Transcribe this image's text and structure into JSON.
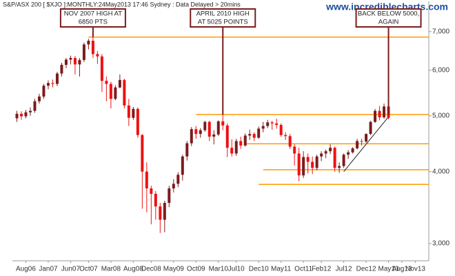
{
  "chart_data": {
    "type": "candlestick",
    "title": "S&P/ASX 200 [ $XJO ]:MONTHLY:24May2013 17:46 Sydney : Data Delayed > 20mins",
    "watermark": "www.incrediblecharts.com",
    "x": [
      "Jun06",
      "Jul06",
      "Aug06",
      "Sep06",
      "Oct06",
      "Nov06",
      "Dec06",
      "Jan07",
      "Feb07",
      "Mar07",
      "Apr07",
      "May07",
      "Jun07",
      "Jul07",
      "Aug07",
      "Sep07",
      "Oct07",
      "Nov07",
      "Dec07",
      "Jan08",
      "Feb08",
      "Mar08",
      "Apr08",
      "May08",
      "Jun08",
      "Jul08",
      "Aug08",
      "Sep08",
      "Oct08",
      "Nov08",
      "Dec08",
      "Jan09",
      "Feb09",
      "Mar09",
      "Apr09",
      "May09",
      "Jun09",
      "Jul09",
      "Aug09",
      "Sep09",
      "Oct09",
      "Nov09",
      "Dec09",
      "Jan10",
      "Feb10",
      "Mar10",
      "Apr10",
      "May10",
      "Jun10",
      "Jul10",
      "Aug10",
      "Sep10",
      "Oct10",
      "Nov10",
      "Dec10",
      "Jan11",
      "Feb11",
      "Mar11",
      "Apr11",
      "May11",
      "Jun11",
      "Jul11",
      "Aug11",
      "Sep11",
      "Oct11",
      "Nov11",
      "Dec11",
      "Jan12",
      "Feb12",
      "Mar12",
      "Apr12",
      "May12",
      "Jun12",
      "Jul12",
      "Aug12",
      "Sep12",
      "Oct12",
      "Nov12",
      "Dec12",
      "Jan13",
      "Feb13",
      "Mar13",
      "Apr13",
      "May13"
    ],
    "open": [
      4950,
      5040,
      4990,
      5070,
      5100,
      5300,
      5400,
      5640,
      5700,
      5680,
      5920,
      6130,
      6260,
      6300,
      6140,
      6250,
      6650,
      6750,
      6400,
      6340,
      5750,
      5680,
      5350,
      5600,
      5770,
      5210,
      4960,
      5140,
      4630,
      4000,
      3740,
      3660,
      3480,
      3300,
      3530,
      3740,
      3810,
      3950,
      4250,
      4480,
      4740,
      4650,
      4720,
      4880,
      4600,
      4640,
      4890,
      4810,
      4400,
      4300,
      4520,
      4440,
      4620,
      4650,
      4580,
      4750,
      4800,
      4870,
      4850,
      4820,
      4630,
      4610,
      4420,
      4300,
      3940,
      4240,
      4160,
      4060,
      4250,
      4300,
      4340,
      4400,
      4060,
      4090,
      4280,
      4320,
      4390,
      4520,
      4510,
      4650,
      4880,
      5100,
      4970,
      5190
    ],
    "high": [
      5100,
      5090,
      5120,
      5170,
      5350,
      5460,
      5680,
      5760,
      5780,
      5960,
      6180,
      6300,
      6360,
      6350,
      6300,
      6700,
      6800,
      6850,
      6480,
      6400,
      5850,
      5730,
      5650,
      5900,
      5800,
      5350,
      5180,
      5170,
      4650,
      4150,
      3780,
      3700,
      3530,
      3560,
      3780,
      3880,
      3990,
      4280,
      4520,
      4780,
      4800,
      4760,
      4900,
      4900,
      4720,
      4910,
      5025,
      4850,
      4550,
      4560,
      4600,
      4660,
      4730,
      4680,
      4790,
      4880,
      4920,
      4900,
      4940,
      4850,
      4680,
      4650,
      4460,
      4400,
      4340,
      4300,
      4250,
      4280,
      4340,
      4370,
      4460,
      4420,
      4150,
      4300,
      4360,
      4410,
      4560,
      4560,
      4660,
      4900,
      5140,
      5200,
      5250,
      5220
    ],
    "low": [
      4880,
      4920,
      4950,
      5000,
      5060,
      5250,
      5350,
      5560,
      5600,
      5630,
      5850,
      6050,
      6140,
      5900,
      5850,
      6200,
      6520,
      6300,
      6150,
      5500,
      5300,
      5150,
      5320,
      5580,
      5150,
      4800,
      4920,
      4580,
      3450,
      3400,
      3240,
      3300,
      3130,
      3140,
      3470,
      3680,
      3760,
      3860,
      4180,
      4430,
      4560,
      4580,
      4690,
      4520,
      4460,
      4610,
      4720,
      4240,
      4250,
      4260,
      4380,
      4420,
      4540,
      4520,
      4560,
      4680,
      4760,
      4730,
      4750,
      4600,
      4540,
      4380,
      4100,
      3850,
      3900,
      3970,
      3960,
      4020,
      4170,
      4220,
      4290,
      4000,
      3980,
      4060,
      4210,
      4300,
      4370,
      4440,
      4490,
      4630,
      4860,
      4910,
      4940,
      4930
    ],
    "close": [
      5040,
      4990,
      5070,
      5100,
      5300,
      5400,
      5640,
      5700,
      5680,
      5920,
      6130,
      6260,
      6300,
      6140,
      6250,
      6650,
      6750,
      6400,
      6340,
      5750,
      5680,
      5350,
      5600,
      5770,
      5210,
      4960,
      5140,
      4630,
      4000,
      3740,
      3660,
      3480,
      3300,
      3530,
      3740,
      3810,
      3950,
      4250,
      4480,
      4740,
      4650,
      4720,
      4880,
      4600,
      4640,
      4890,
      4810,
      4400,
      4300,
      4520,
      4440,
      4620,
      4650,
      4580,
      4750,
      4800,
      4870,
      4850,
      4820,
      4630,
      4610,
      4420,
      4300,
      3940,
      4240,
      4160,
      4060,
      4250,
      4300,
      4340,
      4400,
      4060,
      4090,
      4280,
      4320,
      4390,
      4520,
      4510,
      4650,
      4880,
      5100,
      4970,
      5190,
      4960
    ],
    "up_color": "#7a1c1c",
    "down_color": "#ee1111",
    "xlim": [
      "May06",
      "Feb14"
    ],
    "xticks": [
      "Aug06",
      "Jan07",
      "Jun07",
      "Oct07",
      "Mar08",
      "Aug08",
      "Dec08",
      "May09",
      "Oct09",
      "Mar10",
      "Jul10",
      "Dec10",
      "May11",
      "Oct11",
      "Feb12",
      "Jul12",
      "Dec12",
      "May13",
      "Aug13",
      "Nov13"
    ],
    "ylim": [
      2800,
      7900
    ],
    "yticks": [
      {
        "value": 3000,
        "label": "3,000"
      },
      {
        "value": 4000,
        "label": "4,000"
      },
      {
        "value": 5000,
        "label": "5,000"
      },
      {
        "value": 6000,
        "label": "6,000"
      },
      {
        "value": 7000,
        "label": "7,000"
      }
    ],
    "log_scale": true,
    "levels": [
      {
        "value": 6850,
        "from": "Oct07"
      },
      {
        "value": 5025,
        "from": "Oct09"
      },
      {
        "value": 4470,
        "from": "Sep10"
      },
      {
        "value": 4030,
        "from": "Jan11"
      },
      {
        "value": 3800,
        "from": "Dec10"
      }
    ],
    "level_color": "#ff9900",
    "trendline": {
      "from": "Jul12",
      "from_value": 4000,
      "to": "May13",
      "to_value": 4980
    },
    "trend_color": "#222222",
    "annotation_color": "#7a1c1c",
    "annotations": [
      {
        "lines": [
          "NOV 2007 HIGH AT",
          "6850 PTS"
        ],
        "at": "Nov07",
        "value": 6850
      },
      {
        "lines": [
          "APRIL 2010 HIGH",
          "AT 5025 POINTS"
        ],
        "at": "Apr10",
        "value": 5025
      },
      {
        "lines": [
          "BACK BELOW 5000,",
          "AGAIN"
        ],
        "at": "May13",
        "value": 5025
      }
    ]
  }
}
